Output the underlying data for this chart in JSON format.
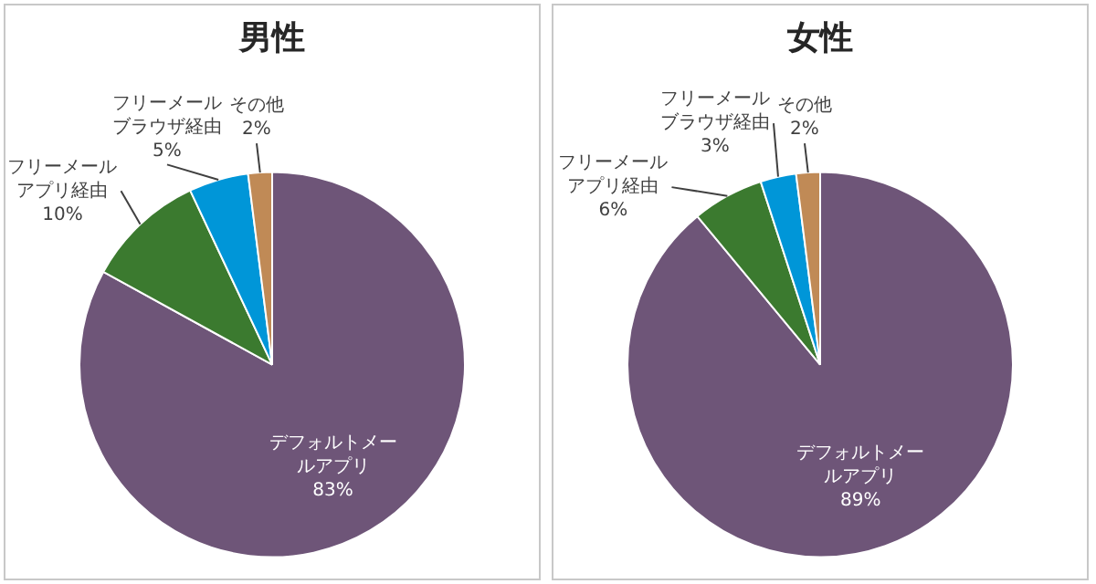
{
  "chart_data": [
    {
      "type": "pie",
      "title": "男性",
      "categories": [
        "デフォルトメールアプリ",
        "フリーメールアプリ経由",
        "フリーメールブラウザ経由",
        "その他"
      ],
      "values": [
        83,
        10,
        5,
        2
      ],
      "colors": [
        "#6e5578",
        "#3b7a2f",
        "#0096d8",
        "#c08a56"
      ],
      "value_labels": [
        "83%",
        "10%",
        "5%",
        "2%"
      ],
      "legend": false
    },
    {
      "type": "pie",
      "title": "女性",
      "categories": [
        "デフォルトメールアプリ",
        "フリーメールアプリ経由",
        "フリーメールブラウザ経由",
        "その他"
      ],
      "values": [
        89,
        6,
        3,
        2
      ],
      "colors": [
        "#6e5578",
        "#3b7a2f",
        "#0096d8",
        "#c08a56"
      ],
      "value_labels": [
        "89%",
        "6%",
        "3%",
        "2%"
      ],
      "legend": false
    }
  ]
}
